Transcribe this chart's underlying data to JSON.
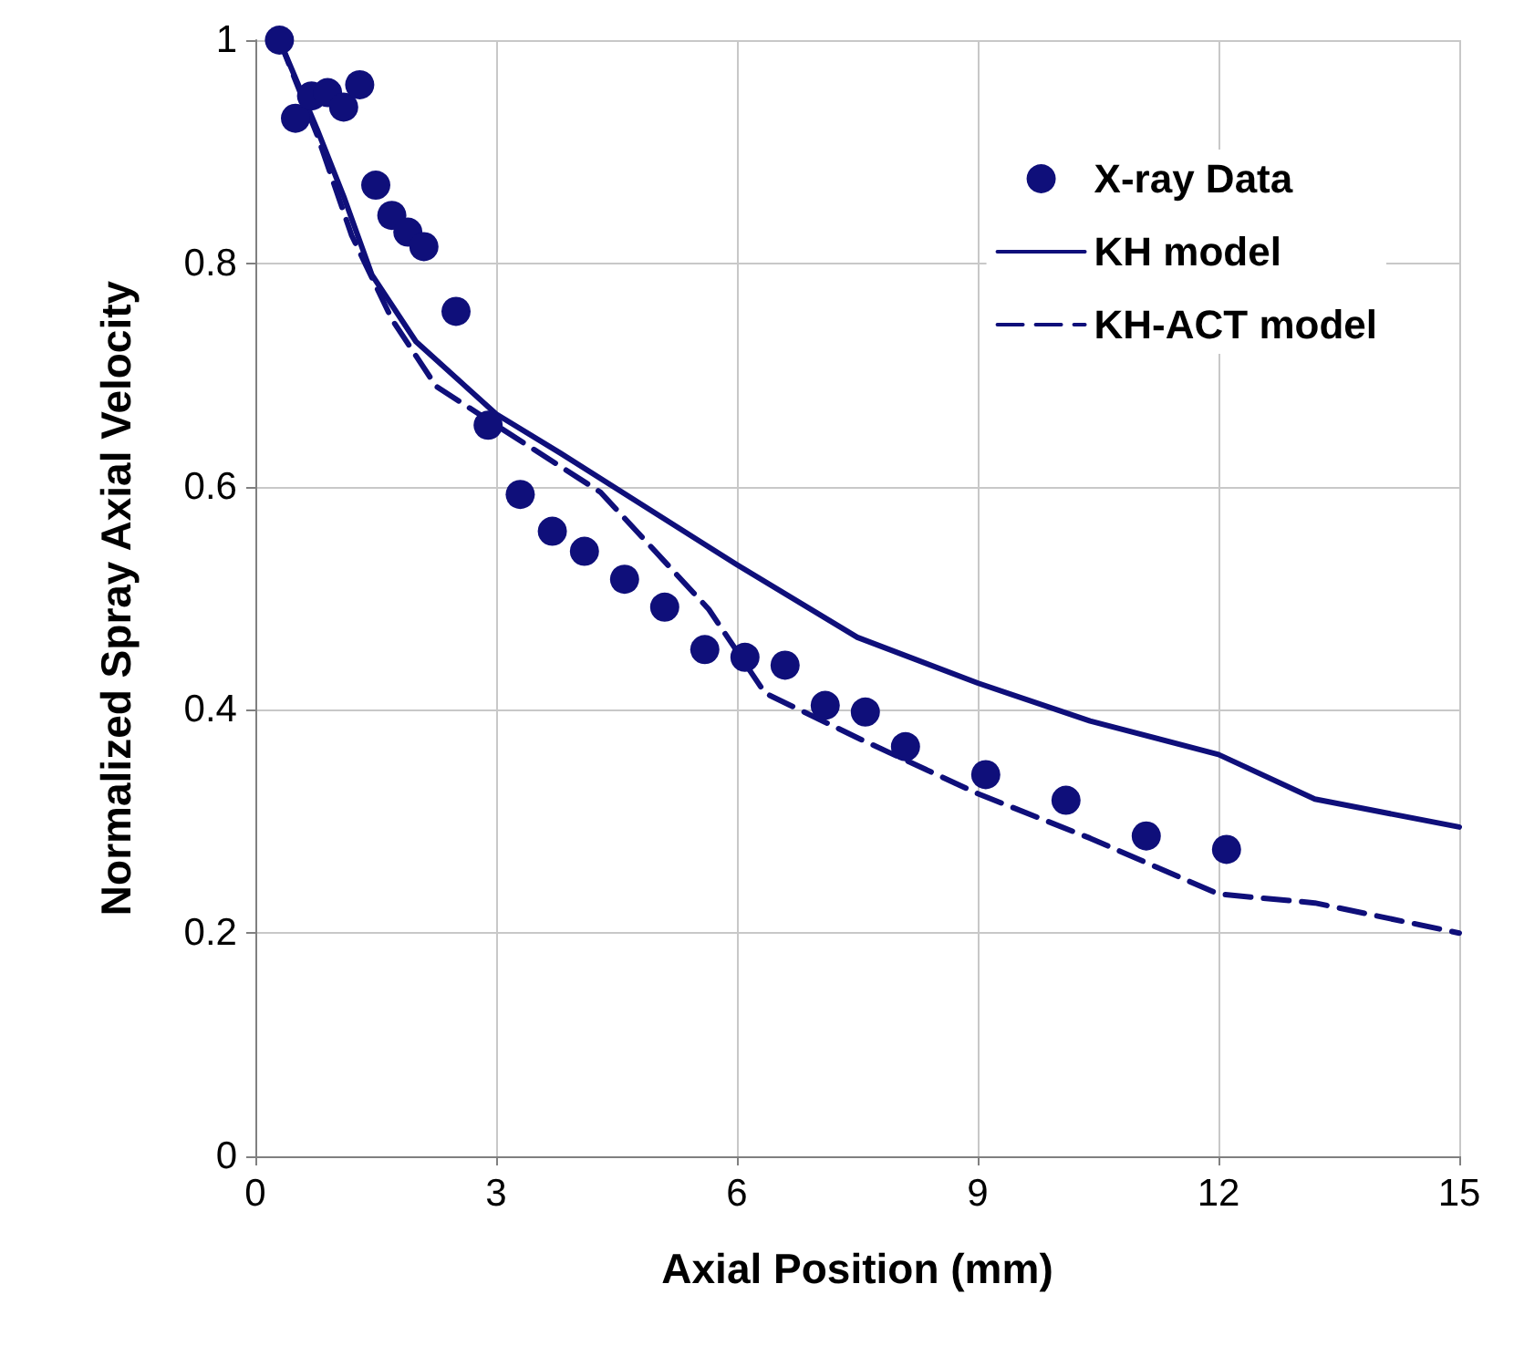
{
  "chart_data": {
    "type": "scatter",
    "xlabel": "Axial Position (mm)",
    "ylabel": "Normalized Spray Axial Velocity",
    "xlim": [
      0,
      15
    ],
    "xticks": [
      0,
      3,
      6,
      9,
      12,
      15
    ],
    "ylim": [
      0,
      1
    ],
    "yticks": [
      0,
      0.2,
      0.4,
      0.6,
      0.8,
      1
    ],
    "grid": true,
    "legend": "top right",
    "series": [
      {
        "name": "X-ray Data",
        "marker": "circle",
        "color": "#0f0f7a",
        "x": [
          0.3,
          0.5,
          0.7,
          0.9,
          1.1,
          1.3,
          1.5,
          1.7,
          1.9,
          2.1,
          2.5,
          2.9,
          3.3,
          3.7,
          4.1,
          4.6,
          5.1,
          5.6,
          6.1,
          6.6,
          7.1,
          7.6,
          8.1,
          9.1,
          10.1,
          11.1,
          12.1
        ],
        "values": [
          1.0,
          0.93,
          0.95,
          0.953,
          0.94,
          0.96,
          0.87,
          0.843,
          0.828,
          0.815,
          0.757,
          0.655,
          0.593,
          0.56,
          0.542,
          0.517,
          0.492,
          0.454,
          0.447,
          0.44,
          0.404,
          0.398,
          0.367,
          0.342,
          0.319,
          0.287,
          0.275
        ]
      },
      {
        "name": "KH model",
        "type": "line",
        "line_style": "solid",
        "color": "#0f0f7a",
        "x": [
          0.3,
          0.77,
          1.1,
          1.45,
          2.0,
          3.0,
          3.8,
          6.0,
          7.5,
          9.0,
          10.4,
          12.0,
          13.2,
          15.0
        ],
        "values": [
          1.0,
          0.92,
          0.86,
          0.79,
          0.73,
          0.665,
          0.63,
          0.53,
          0.465,
          0.424,
          0.39,
          0.36,
          0.32,
          0.295
        ]
      },
      {
        "name": "KH-ACT model",
        "type": "line",
        "line_style": "dashed",
        "color": "#0f0f7a",
        "x": [
          0.3,
          0.77,
          1.2,
          1.7,
          2.25,
          3.0,
          4.3,
          5.65,
          6.35,
          7.5,
          9.0,
          10.4,
          12.0,
          13.2,
          15.0
        ],
        "values": [
          1.0,
          0.915,
          0.825,
          0.75,
          0.69,
          0.655,
          0.595,
          0.49,
          0.415,
          0.375,
          0.325,
          0.285,
          0.235,
          0.227,
          0.2
        ]
      }
    ]
  }
}
